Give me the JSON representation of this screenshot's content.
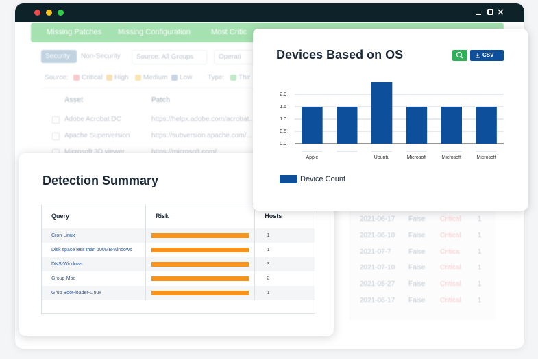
{
  "background": {
    "tabs": [
      "Missing Patches",
      "Missing Configuration",
      "Most Critic"
    ],
    "buttons": [
      "Security",
      "Non-Security",
      "Source: All Groups",
      "Operati"
    ],
    "source_label": "Source:",
    "severities": [
      "Critical",
      "High",
      "Medium",
      "Low"
    ],
    "type_label": "Type:",
    "type_first": "Thir",
    "table": {
      "headers": [
        "Asset",
        "Patch"
      ],
      "rows": [
        [
          "Adobe Acrobat DC",
          "https://helpx.adobe.com/acrobat..."
        ],
        [
          "Apache Superversion",
          "https://subversion.apache.com/..."
        ],
        [
          "Microsoft 3D viewer",
          "https://microsoft.com/"
        ]
      ]
    },
    "right_rows": [
      [
        "2021-06-17",
        "False",
        "Critical",
        "1"
      ],
      [
        "2021-06-10",
        "False",
        "Critical",
        "1"
      ],
      [
        "2021-07-7",
        "False",
        "Critica",
        "1"
      ],
      [
        "2021-07-10",
        "False",
        "Critical",
        "1"
      ],
      [
        "2021-05-27",
        "False",
        "Critical",
        "1"
      ],
      [
        "2021-06-17",
        "False",
        "Critical",
        "1"
      ]
    ]
  },
  "detection_summary": {
    "title": "Detection Summary",
    "headers": [
      "Query",
      "Risk",
      "Hosts"
    ],
    "rows": [
      {
        "query": "Cron-Linux",
        "hosts": "1"
      },
      {
        "query": "Disk space less than 100MB-windows",
        "hosts": "1"
      },
      {
        "query": "DNS-Windows",
        "hosts": "3"
      },
      {
        "query": "Group-Mac",
        "hosts": "2"
      },
      {
        "query": "Grub Boot-loader-Linux",
        "hosts": "1"
      }
    ]
  },
  "chart_data": {
    "type": "bar",
    "title": "Devices Based on OS",
    "export_label": "CSV",
    "categories": [
      "Apple",
      null,
      "Ubuntu",
      "Microsoft",
      "Microsoft",
      "Microsoft"
    ],
    "series": [
      {
        "name": "Device Count",
        "color": "#0d4f9b",
        "values": [
          1.5,
          1.5,
          2.5,
          1.5,
          1.5,
          1.5
        ]
      }
    ],
    "ylim": [
      0,
      2.5
    ],
    "yticks": [
      {
        "value": 0,
        "label": "0.0"
      },
      {
        "value": 0.5,
        "label": "0.5"
      },
      {
        "value": 1,
        "label": "1.0"
      },
      {
        "value": 1.5,
        "label": "1.5"
      },
      {
        "value": 2,
        "label": "2.0"
      }
    ],
    "grid": true
  }
}
